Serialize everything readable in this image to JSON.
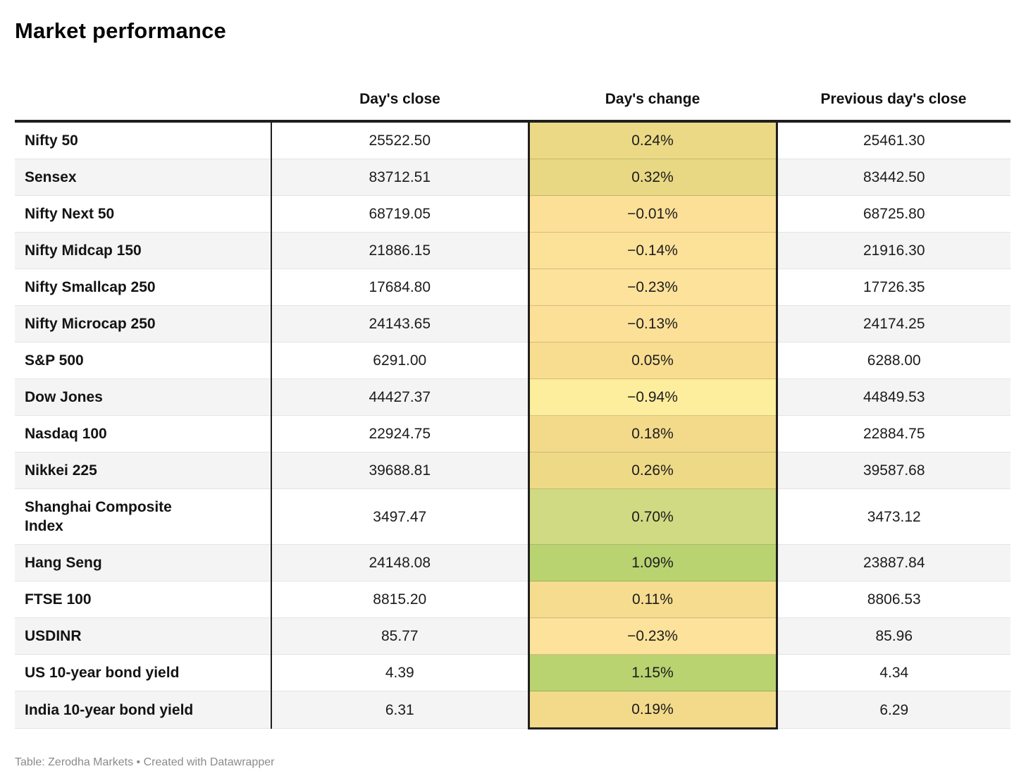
{
  "title": "Market performance",
  "footer": "Table: Zerodha Markets • Created with Datawrapper",
  "chart_data": {
    "type": "table",
    "title": "Market performance",
    "columns": [
      "",
      "Day's close",
      "Day's change",
      "Previous day's close"
    ],
    "color_scale_note": "sequential yellow-to-green heatmap on Day's change column",
    "rows": [
      {
        "label": "Nifty 50",
        "close": "25522.50",
        "change": "0.24%",
        "prev": "25461.30",
        "change_color": "#ebd985"
      },
      {
        "label": "Sensex",
        "close": "83712.51",
        "change": "0.32%",
        "prev": "83442.50",
        "change_color": "#e9d883"
      },
      {
        "label": "Nifty Next 50",
        "close": "68719.05",
        "change": "−0.01%",
        "prev": "68725.80",
        "change_color": "#fce098"
      },
      {
        "label": "Nifty Midcap 150",
        "close": "21886.15",
        "change": "−0.14%",
        "prev": "21916.30",
        "change_color": "#fce199"
      },
      {
        "label": "Nifty Smallcap 250",
        "close": "17684.80",
        "change": "−0.23%",
        "prev": "17726.35",
        "change_color": "#fce29a"
      },
      {
        "label": "Nifty Microcap 250",
        "close": "24143.65",
        "change": "−0.13%",
        "prev": "24174.25",
        "change_color": "#fce098"
      },
      {
        "label": "S&P 500",
        "close": "6291.00",
        "change": "0.05%",
        "prev": "6288.00",
        "change_color": "#f8dd91"
      },
      {
        "label": "Dow Jones",
        "close": "44427.37",
        "change": "−0.94%",
        "prev": "44849.53",
        "change_color": "#fdee9e"
      },
      {
        "label": "Nasdaq 100",
        "close": "22924.75",
        "change": "0.18%",
        "prev": "22884.75",
        "change_color": "#f3da8b"
      },
      {
        "label": "Nikkei 225",
        "close": "39688.81",
        "change": "0.26%",
        "prev": "39587.68",
        "change_color": "#eeda86"
      },
      {
        "label": "Shanghai Composite Index",
        "close": "3497.47",
        "change": "0.70%",
        "prev": "3473.12",
        "change_color": "#cfda82"
      },
      {
        "label": "Hang Seng",
        "close": "24148.08",
        "change": "1.09%",
        "prev": "23887.84",
        "change_color": "#b9d371"
      },
      {
        "label": "FTSE 100",
        "close": "8815.20",
        "change": "0.11%",
        "prev": "8806.53",
        "change_color": "#f6dc8f"
      },
      {
        "label": "USDINR",
        "close": "85.77",
        "change": "−0.23%",
        "prev": "85.96",
        "change_color": "#fce29a"
      },
      {
        "label": "US 10-year bond yield",
        "close": "4.39",
        "change": "1.15%",
        "prev": "4.34",
        "change_color": "#b8d370"
      },
      {
        "label": "India 10-year bond yield",
        "close": "6.31",
        "change": "0.19%",
        "prev": "6.29",
        "change_color": "#f3da8b"
      }
    ]
  }
}
